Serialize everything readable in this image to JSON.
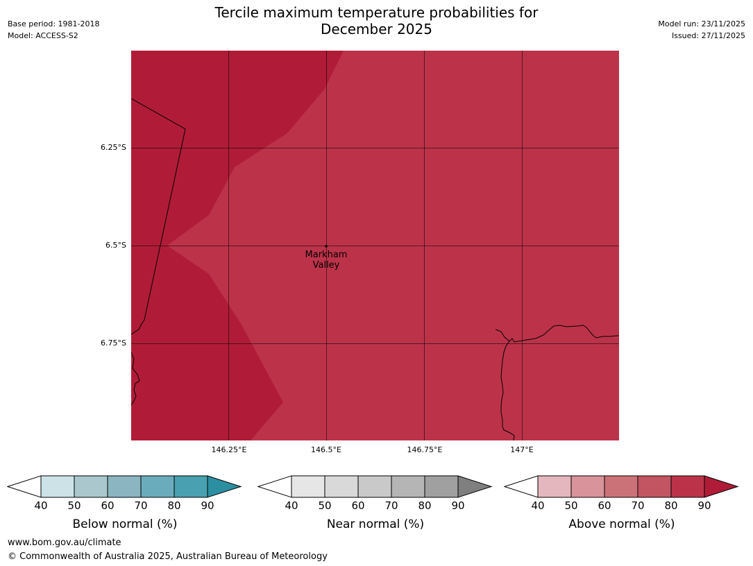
{
  "header": {
    "base_period": "Base period: 1981-2018",
    "model": "Model: ACCESS-S2",
    "title_line1": "Tercile maximum temperature probabilities for",
    "title_line2": "December 2025",
    "model_run": "Model run: 23/11/2025",
    "issued": "Issued: 27/11/2025"
  },
  "map": {
    "lat_labels": [
      "6.25°S",
      "6.5°S",
      "6.75°S"
    ],
    "lon_labels": [
      "146.25°E",
      "146.5°E",
      "146.75°E",
      "147°E"
    ],
    "town": {
      "name_line1": "Markham",
      "name_line2": "Valley",
      "lon": 146.5,
      "lat": -6.5
    },
    "colors": {
      "above_90": "#b01c37",
      "above_80": "#bc3349",
      "coastline": "#000000",
      "gridline": "#000000"
    }
  },
  "colorbars": [
    {
      "title": "Below normal (%)",
      "ticks": [
        "40",
        "50",
        "60",
        "70",
        "80",
        "90"
      ],
      "colors": [
        "#cce2e6",
        "#a9c7cc",
        "#8ab5c1",
        "#6aacbc",
        "#48a0b0",
        "#2b8fa1"
      ]
    },
    {
      "title": "Near normal (%)",
      "ticks": [
        "40",
        "50",
        "60",
        "70",
        "80",
        "90"
      ],
      "colors": [
        "#e6e6e6",
        "#d9d9d9",
        "#c9c9c9",
        "#b5b5b5",
        "#a0a0a0",
        "#7f7f7f"
      ]
    },
    {
      "title": "Above normal (%)",
      "ticks": [
        "40",
        "50",
        "60",
        "70",
        "80",
        "90"
      ],
      "colors": [
        "#e3b7bd",
        "#d8939b",
        "#cb7279",
        "#c35563",
        "#bc3349",
        "#b01c37"
      ]
    }
  ],
  "footer": {
    "website": "www.bom.gov.au/climate",
    "copyright": "© Commonwealth of Australia 2025, Australian Bureau of Meteorology"
  }
}
